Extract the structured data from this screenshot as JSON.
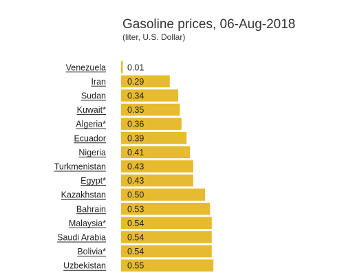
{
  "chart_data": {
    "type": "bar",
    "orientation": "horizontal",
    "title": "Gasoline prices, 06-Aug-2018",
    "subtitle": "(liter, U.S. Dollar)",
    "categories": [
      "Venezuela",
      "Iran",
      "Sudan",
      "Kuwait*",
      "Algeria*",
      "Ecuador",
      "Nigeria",
      "Turkmenistan",
      "Egypt*",
      "Kazakhstan",
      "Bahrain",
      "Malaysia*",
      "Saudi Arabia",
      "Bolivia*",
      "Uzbekistan"
    ],
    "values": [
      0.01,
      0.29,
      0.34,
      0.35,
      0.36,
      0.39,
      0.41,
      0.43,
      0.43,
      0.5,
      0.53,
      0.54,
      0.54,
      0.54,
      0.55
    ],
    "value_labels": [
      "0.01",
      "0.29",
      "0.34",
      "0.35",
      "0.36",
      "0.39",
      "0.41",
      "0.43",
      "0.43",
      "0.50",
      "0.53",
      "0.54",
      "0.54",
      "0.54",
      "0.55"
    ],
    "bar_color": "#e6bb2f",
    "category_label_style": "underlined",
    "grid": false
  }
}
